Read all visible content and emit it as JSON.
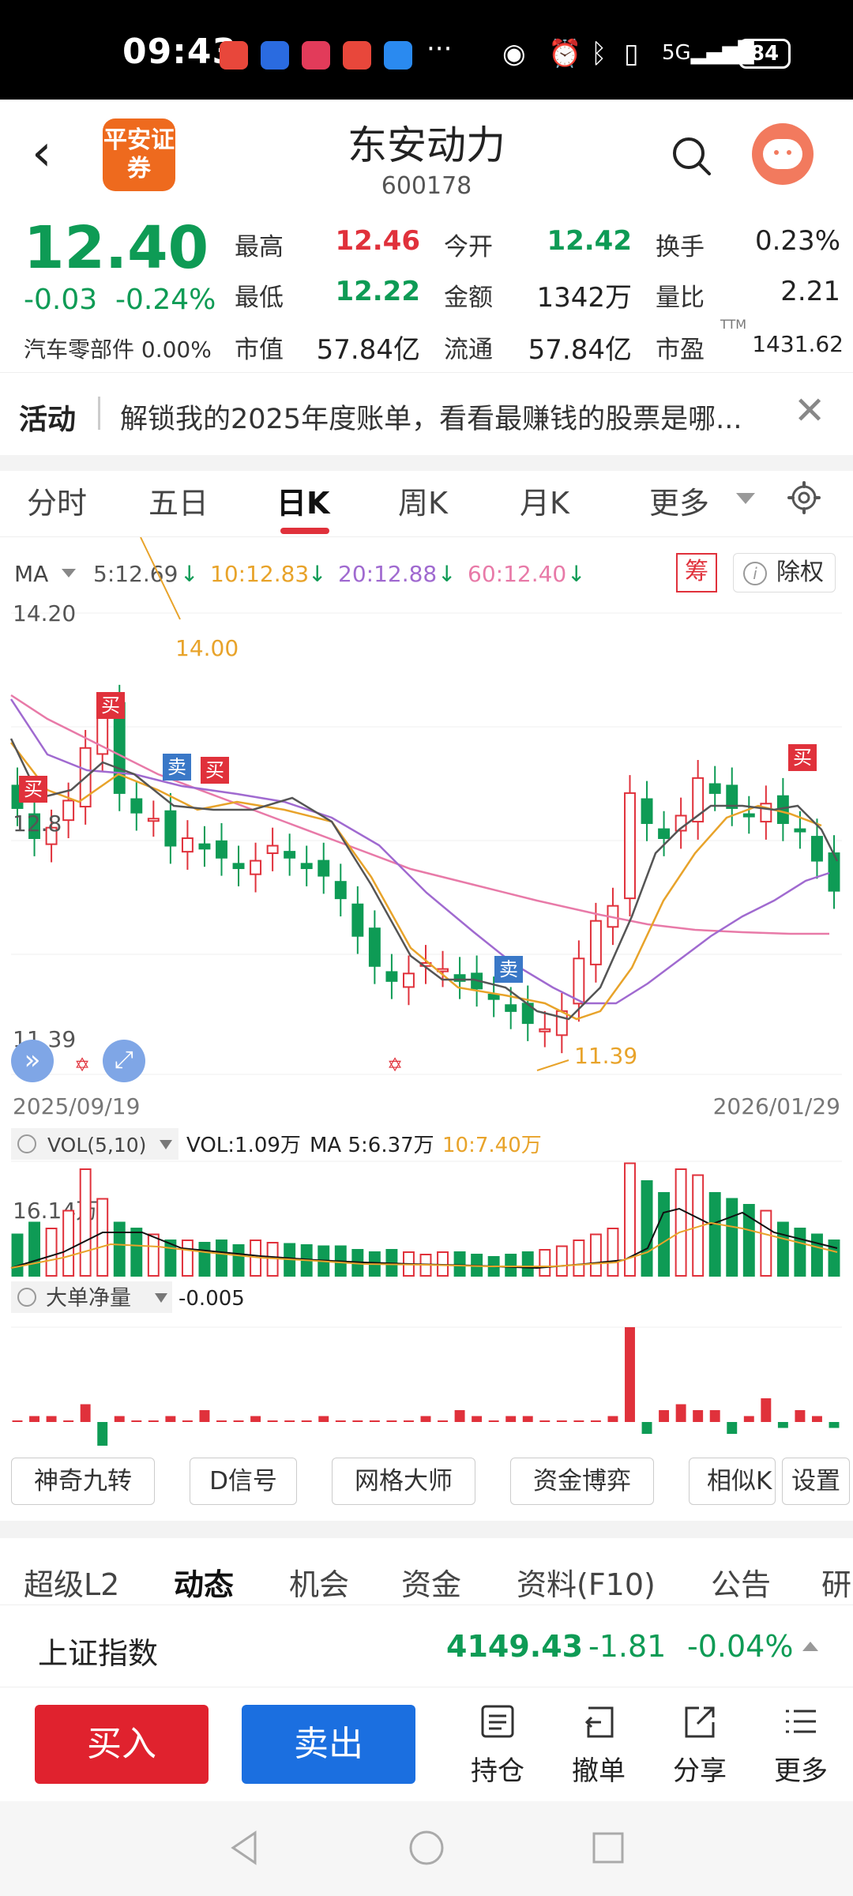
{
  "status_bar": {
    "time": "09:43",
    "more_dots": "···",
    "battery": "84"
  },
  "header": {
    "broker_logo_text": "平安证券",
    "stock_name": "东安动力",
    "stock_code": "600178"
  },
  "quote": {
    "price": "12.40",
    "change": "-0.03",
    "change_pct": "-0.24%",
    "industry": "汽车零部件 0.00%",
    "stats": [
      {
        "label": "最高",
        "value": "12.46",
        "color": "red"
      },
      {
        "label": "今开",
        "value": "12.42",
        "color": "green"
      },
      {
        "label": "换手",
        "value": "0.23%",
        "color": "dark"
      },
      {
        "label": "最低",
        "value": "12.22",
        "color": "green"
      },
      {
        "label": "金额",
        "value": "1342万",
        "color": "dark"
      },
      {
        "label": "量比",
        "value": "2.21",
        "color": "dark"
      },
      {
        "label": "市值",
        "value": "57.84亿",
        "color": "dark"
      },
      {
        "label": "流通",
        "value": "57.84亿",
        "color": "dark"
      },
      {
        "label": "市盈",
        "value": "1431.62",
        "color": "dark"
      }
    ],
    "pe_superscript": "TTM"
  },
  "activity": {
    "tag": "活动",
    "text": "解锁我的2025年度账单，看看最赚钱的股票是哪..."
  },
  "period_tabs": [
    "分时",
    "五日",
    "日K",
    "周K",
    "月K",
    "更多"
  ],
  "active_period": "日K",
  "chart_legend": {
    "ma_label": "MA",
    "ma5": "5:12.69",
    "ma10": "10:12.83",
    "ma20": "20:12.88",
    "ma60": "60:12.40",
    "chip_button": "筹",
    "adjust_button": "除权"
  },
  "chart_axis": {
    "top_price": "14.20",
    "high_marker": "14.00",
    "low_marker": "11.39",
    "bottom_price": "11.39",
    "mid_price": "12.8",
    "start_date": "2025/09/19",
    "end_date": "2026/01/29"
  },
  "signal_labels": {
    "buy": "买",
    "sell": "卖"
  },
  "volume": {
    "indicator": "VOL(5,10)",
    "vol": "VOL:1.09万",
    "ma5": "MA 5:6.37万",
    "ma10": "10:7.40万",
    "axis_max": "16.14万"
  },
  "big_order": {
    "label": "大单净量",
    "value": "-0.005"
  },
  "indicator_buttons": [
    "神奇九转",
    "D信号",
    "网格大师",
    "资金博弈",
    "相似K",
    "设置"
  ],
  "info_tabs": [
    "超级L2",
    "动态",
    "机会",
    "资金",
    "资料(F10)",
    "公告",
    "研"
  ],
  "active_info_tab": "动态",
  "index_row": {
    "name": "上证指数",
    "value": "4149.43",
    "change": "-1.81",
    "pct": "-0.04%"
  },
  "actions": {
    "buy": "买入",
    "sell": "卖出",
    "position": "持仓",
    "cancel": "撤单",
    "share": "分享",
    "more": "更多"
  },
  "colors": {
    "up": "#e0313b",
    "down": "#0e9b55",
    "ma5": "#555555",
    "ma10": "#e8a32a",
    "ma20": "#a06ad0",
    "ma60": "#e87aa8",
    "brand": "#ee6a1e",
    "sell_blue": "#1b6fe0"
  },
  "chart_data": {
    "type": "candlestick",
    "x_range": [
      "2025/09/19",
      "2026/01/29"
    ],
    "y_range": [
      11.39,
      14.2
    ],
    "high": 14.0,
    "low": 11.39,
    "close_series_approx": [
      12.95,
      12.75,
      12.82,
      13.0,
      13.35,
      13.6,
      13.05,
      12.92,
      12.88,
      12.7,
      12.75,
      12.68,
      12.62,
      12.55,
      12.6,
      12.7,
      12.62,
      12.55,
      12.5,
      12.35,
      12.1,
      11.9,
      11.8,
      11.85,
      11.92,
      11.88,
      11.8,
      11.75,
      11.68,
      11.6,
      11.52,
      11.48,
      11.6,
      11.95,
      12.2,
      12.3,
      13.05,
      12.85,
      12.75,
      12.9,
      13.15,
      13.05,
      12.95,
      12.9,
      12.98,
      12.85,
      12.8,
      12.6,
      12.4
    ],
    "series": [
      {
        "name": "MA5",
        "value": 12.69
      },
      {
        "name": "MA10",
        "value": 12.83
      },
      {
        "name": "MA20",
        "value": 12.88
      },
      {
        "name": "MA60",
        "value": 12.4
      }
    ]
  }
}
